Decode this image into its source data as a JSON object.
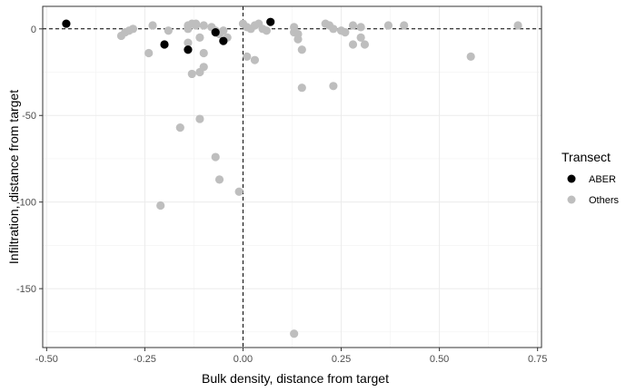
{
  "chart_data": {
    "type": "scatter",
    "xlabel": "Bulk density, distance from target",
    "ylabel": "Infiltration, distance from target",
    "xlim": [
      -0.51,
      0.76
    ],
    "ylim": [
      -184,
      13
    ],
    "x_ticks": [
      -0.5,
      -0.25,
      0,
      0.25,
      0.5,
      0.75
    ],
    "x_tick_labels": [
      "-0.50",
      "-0.25",
      "0.00",
      "0.25",
      "0.50",
      "0.75"
    ],
    "y_ticks": [
      0,
      -50,
      -100,
      -150
    ],
    "y_tick_labels": [
      "0",
      "-50",
      "-100",
      "-150"
    ],
    "reference_lines": {
      "x": 0,
      "y": 0,
      "style": "dashed"
    },
    "grid": true,
    "legend": {
      "title": "Transect",
      "position": "right",
      "entries": [
        {
          "label": "ABER",
          "color": "#000000"
        },
        {
          "label": "Others",
          "color": "#bebebe"
        }
      ]
    },
    "series": [
      {
        "name": "Others",
        "color": "#bebebe",
        "points": [
          [
            -0.31,
            -4
          ],
          [
            -0.3,
            -2
          ],
          [
            -0.29,
            -1
          ],
          [
            -0.28,
            0
          ],
          [
            -0.24,
            -14
          ],
          [
            -0.23,
            2
          ],
          [
            -0.21,
            -102
          ],
          [
            -0.19,
            -1
          ],
          [
            -0.16,
            -57
          ],
          [
            -0.14,
            -8
          ],
          [
            -0.14,
            0
          ],
          [
            -0.14,
            2
          ],
          [
            -0.13,
            3
          ],
          [
            -0.13,
            -26
          ],
          [
            -0.12,
            3
          ],
          [
            -0.12,
            2
          ],
          [
            -0.11,
            -25
          ],
          [
            -0.11,
            -52
          ],
          [
            -0.11,
            -5
          ],
          [
            -0.1,
            2
          ],
          [
            -0.1,
            -22
          ],
          [
            -0.1,
            -14
          ],
          [
            -0.08,
            1
          ],
          [
            -0.07,
            -1
          ],
          [
            -0.07,
            -74
          ],
          [
            -0.06,
            -87
          ],
          [
            -0.06,
            -3
          ],
          [
            -0.05,
            -1
          ],
          [
            -0.04,
            -5
          ],
          [
            -0.01,
            -94
          ],
          [
            0.0,
            3
          ],
          [
            0.01,
            -16
          ],
          [
            0.01,
            1
          ],
          [
            0.02,
            0
          ],
          [
            0.03,
            -18
          ],
          [
            0.03,
            2
          ],
          [
            0.04,
            3
          ],
          [
            0.05,
            0
          ],
          [
            0.06,
            -1
          ],
          [
            0.13,
            1
          ],
          [
            0.13,
            -2
          ],
          [
            0.13,
            -176
          ],
          [
            0.14,
            -3
          ],
          [
            0.14,
            -6
          ],
          [
            0.15,
            -12
          ],
          [
            0.15,
            -34
          ],
          [
            0.21,
            3
          ],
          [
            0.22,
            2
          ],
          [
            0.23,
            0
          ],
          [
            0.23,
            -33
          ],
          [
            0.25,
            -1
          ],
          [
            0.26,
            -2
          ],
          [
            0.28,
            -9
          ],
          [
            0.28,
            2
          ],
          [
            0.3,
            1
          ],
          [
            0.3,
            -5
          ],
          [
            0.31,
            -9
          ],
          [
            0.37,
            2
          ],
          [
            0.41,
            2
          ],
          [
            0.58,
            -16
          ],
          [
            0.7,
            2
          ]
        ]
      },
      {
        "name": "ABER",
        "color": "#000000",
        "points": [
          [
            -0.45,
            3
          ],
          [
            -0.2,
            -9
          ],
          [
            -0.14,
            -12
          ],
          [
            -0.07,
            -2
          ],
          [
            -0.05,
            -7
          ],
          [
            0.07,
            4
          ]
        ]
      }
    ]
  }
}
